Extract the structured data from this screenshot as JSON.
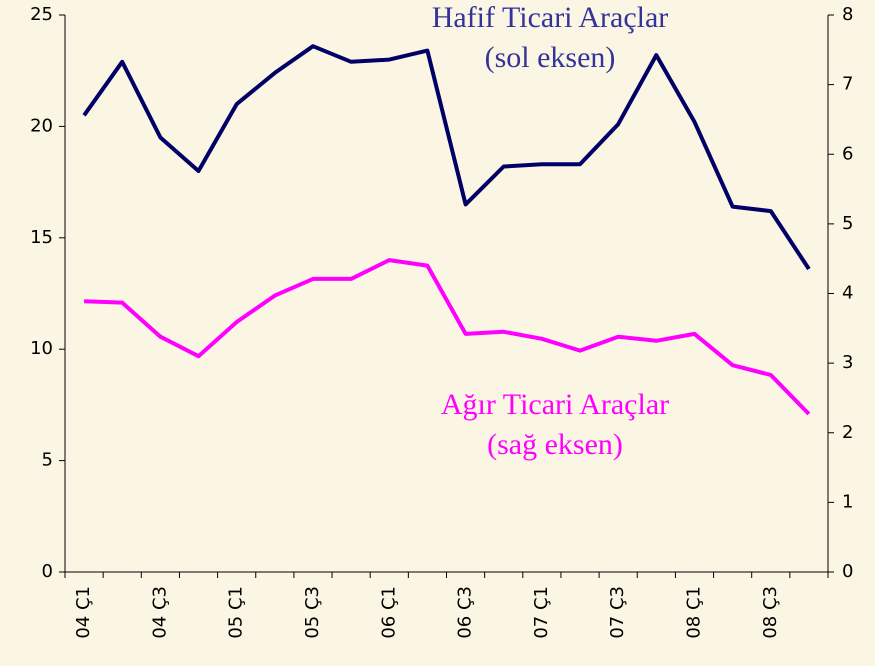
{
  "chart_data": {
    "type": "line",
    "categories": [
      "04 Ç1",
      null,
      "04 Ç3",
      null,
      "05 Ç1",
      null,
      "05 Ç3",
      null,
      "06 Ç1",
      null,
      "06 Ç3",
      null,
      "07 Ç1",
      null,
      "07 Ç3",
      null,
      "08 Ç1",
      null,
      "08 Ç3",
      null
    ],
    "series": [
      {
        "name": "Hafif Ticari Araçlar",
        "color": "#000066",
        "axis": "y",
        "values": [
          20.5,
          22.9,
          19.5,
          18.0,
          21.0,
          22.4,
          23.6,
          22.9,
          23.0,
          23.4,
          16.5,
          18.2,
          18.3,
          18.3,
          20.1,
          23.2,
          20.2,
          16.4,
          16.2,
          13.6
        ]
      },
      {
        "name": "Ağır Ticari Araçlar",
        "color": "#ff00ff",
        "axis": "y2",
        "values": [
          3.89,
          3.87,
          3.38,
          3.1,
          3.59,
          3.97,
          4.21,
          4.21,
          4.48,
          4.4,
          3.42,
          3.45,
          3.35,
          3.18,
          3.38,
          3.32,
          3.42,
          2.97,
          2.83,
          2.27
        ]
      }
    ],
    "annotations": [
      {
        "lines": [
          "Hafif Ticari Araçlar",
          "(sol eksen)"
        ],
        "color": "#333399"
      },
      {
        "lines": [
          "Ağır Ticari Araçlar",
          "(sağ eksen)"
        ],
        "color": "#ff00ff"
      }
    ],
    "ylim": [
      0,
      25
    ],
    "yticks": [
      0,
      5,
      10,
      15,
      20,
      25
    ],
    "y2lim": [
      0,
      8
    ],
    "y2ticks": [
      0,
      1,
      2,
      3,
      4,
      5,
      6,
      7,
      8
    ],
    "grid": false
  }
}
